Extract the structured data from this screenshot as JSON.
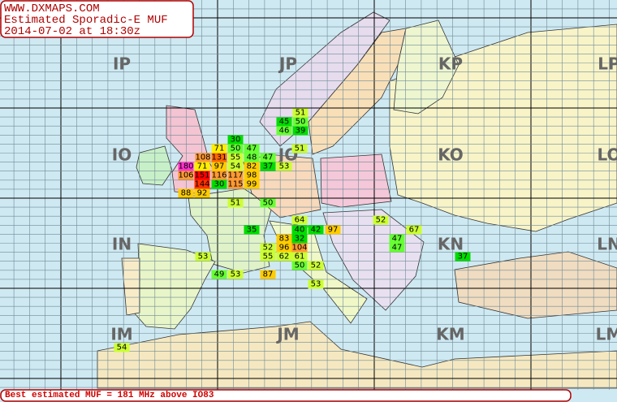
{
  "header": {
    "site": "WWW.DXMAPS.COM",
    "title": "Estimated Sporadic-E MUF",
    "timestamp": "2014-07-02 at 18:30z"
  },
  "locator_labels": [
    "IP",
    "JP",
    "KP",
    "LP",
    "IO",
    "JO",
    "KO",
    "LO",
    "IN",
    "JN",
    "KN",
    "LN",
    "IM",
    "JM",
    "KM",
    "LM"
  ],
  "muf_values": [
    51,
    45,
    50,
    46,
    39,
    30,
    71,
    50,
    47,
    51,
    108,
    131,
    55,
    48,
    47,
    180,
    71,
    97,
    54,
    82,
    37,
    53,
    106,
    151,
    116,
    117,
    98,
    144,
    30,
    115,
    99,
    88,
    92,
    51,
    50,
    64,
    52,
    35,
    40,
    42,
    97,
    67,
    83,
    32,
    47,
    52,
    96,
    104,
    47,
    53,
    55,
    62,
    61,
    37,
    50,
    52,
    49,
    53,
    87,
    53,
    54
  ],
  "footer": "Best estimated MUF = 181 MHz above IO83"
}
